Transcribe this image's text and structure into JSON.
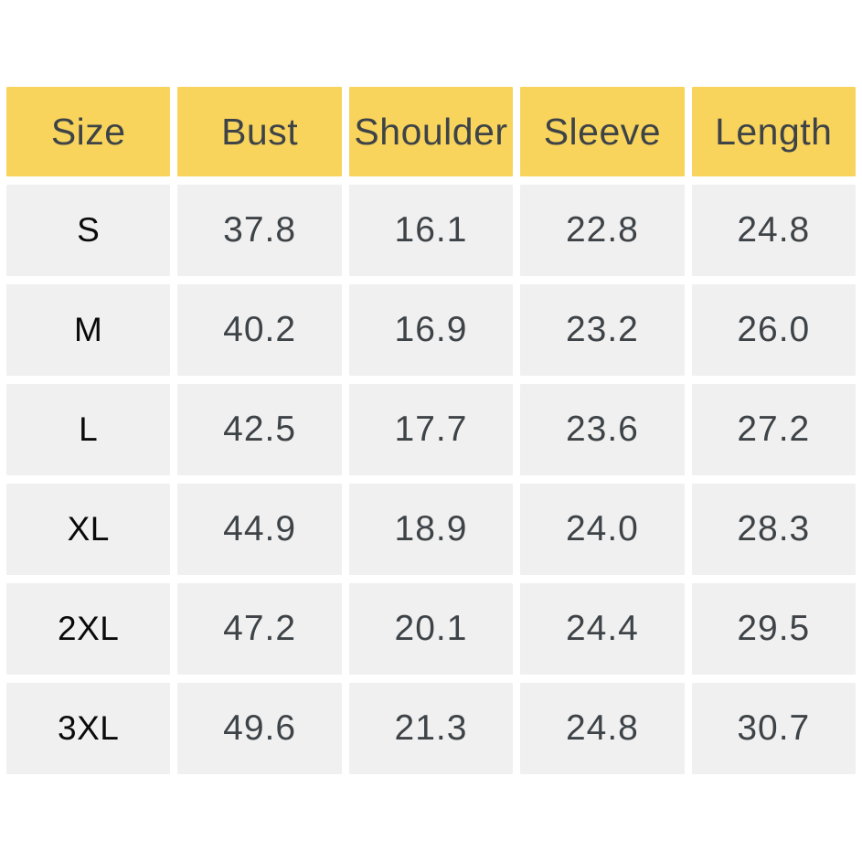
{
  "chart_data": {
    "type": "table",
    "columns": [
      "Size",
      "Bust",
      "Shoulder",
      "Sleeve",
      "Length"
    ],
    "rows": [
      [
        "S",
        "37.8",
        "16.1",
        "22.8",
        "24.8"
      ],
      [
        "M",
        "40.2",
        "16.9",
        "23.2",
        "26.0"
      ],
      [
        "L",
        "42.5",
        "17.7",
        "23.6",
        "27.2"
      ],
      [
        "XL",
        "44.9",
        "18.9",
        "24.0",
        "28.3"
      ],
      [
        "2XL",
        "47.2",
        "20.1",
        "24.4",
        "29.5"
      ],
      [
        "3XL",
        "49.6",
        "21.3",
        "24.8",
        "30.7"
      ]
    ]
  },
  "colors": {
    "header_background": "#F8D45C",
    "cell_background": "#F0F0F0",
    "header_text": "#3E4347",
    "value_text": "#3E4347",
    "size_label_text": "#0A0A0A",
    "page_background": "#FFFFFF"
  }
}
